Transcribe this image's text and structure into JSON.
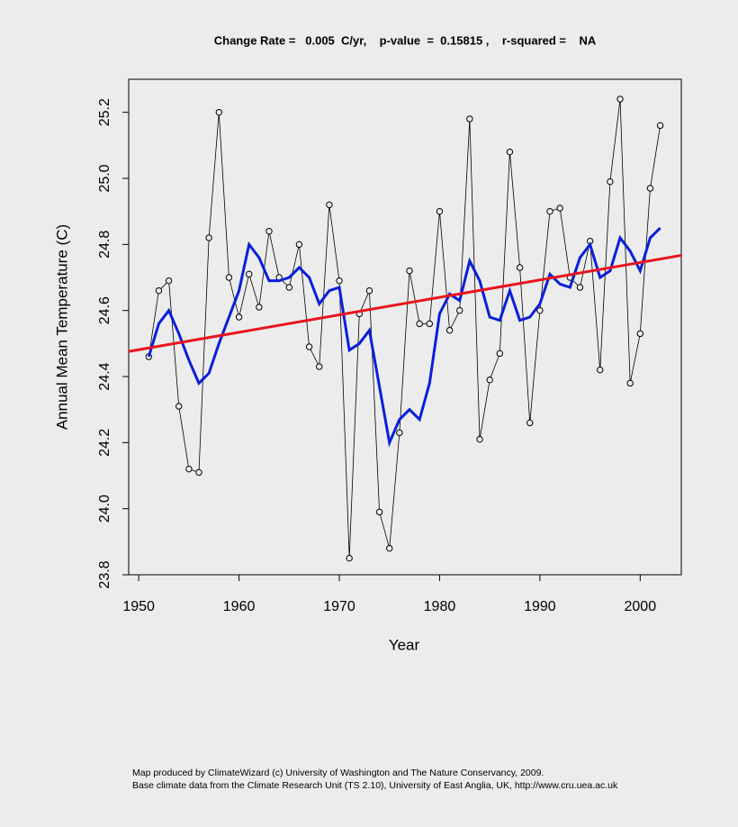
{
  "chart_data": {
    "type": "line",
    "title": "Change Rate =   0.005  C/yr,    p-value  =  0.15815 ,    r-squared =    NA",
    "x_label": "Year",
    "y_label": "Annual Mean Temperature (C)",
    "footnotes": [
      "Map produced by ClimateWizard (c) University of Washington and The Nature Conservancy, 2009.",
      "Base climate data from the Climate Research Unit (TS 2.10), University of East Anglia, UK, http://www.cru.uea.ac.uk"
    ],
    "x": [
      1951,
      1952,
      1953,
      1954,
      1955,
      1956,
      1957,
      1958,
      1959,
      1960,
      1961,
      1962,
      1963,
      1964,
      1965,
      1966,
      1967,
      1968,
      1969,
      1970,
      1971,
      1972,
      1973,
      1974,
      1975,
      1976,
      1977,
      1978,
      1979,
      1980,
      1981,
      1982,
      1983,
      1984,
      1985,
      1986,
      1987,
      1988,
      1989,
      1990,
      1991,
      1992,
      1993,
      1994,
      1995,
      1996,
      1997,
      1998,
      1999,
      2000,
      2001,
      2002
    ],
    "series": [
      {
        "color": "#000000",
        "markers": true,
        "line_width": 0.8,
        "values": [
          24.46,
          24.66,
          24.69,
          24.31,
          24.12,
          24.11,
          24.82,
          25.2,
          24.7,
          24.58,
          24.71,
          24.61,
          24.84,
          24.7,
          24.67,
          24.8,
          24.49,
          24.43,
          24.92,
          24.69,
          23.85,
          24.59,
          24.66,
          23.99,
          23.88,
          24.23,
          24.72,
          24.56,
          24.56,
          24.9,
          24.54,
          24.6,
          25.18,
          24.21,
          24.39,
          24.47,
          25.08,
          24.73,
          24.26,
          24.6,
          24.9,
          24.91,
          24.7,
          24.67,
          24.81,
          24.42,
          24.99,
          25.24,
          24.38,
          24.53,
          24.97,
          25.16
        ]
      },
      {
        "color": "#0a1fd8",
        "markers": false,
        "line_width": 3,
        "values": [
          24.46,
          24.56,
          24.6,
          24.53,
          24.45,
          24.38,
          24.41,
          24.5,
          24.58,
          24.66,
          24.8,
          24.76,
          24.69,
          24.69,
          24.7,
          24.73,
          24.7,
          24.62,
          24.66,
          24.67,
          24.48,
          24.5,
          24.54,
          24.37,
          24.2,
          24.27,
          24.3,
          24.27,
          24.38,
          24.59,
          24.65,
          24.63,
          24.75,
          24.69,
          24.58,
          24.57,
          24.66,
          24.57,
          24.58,
          24.62,
          24.71,
          24.68,
          24.67,
          24.76,
          24.8,
          24.7,
          24.72,
          24.82,
          24.78,
          24.72,
          24.82,
          24.85
        ]
      },
      {
        "color": "#e8141c",
        "markers": false,
        "line_width": 3,
        "x": [
          1949,
          2004.1
        ],
        "values": [
          24.476,
          24.767
        ]
      }
    ],
    "xlim": [
      1949,
      2004.1
    ],
    "ylim": [
      23.8,
      25.3
    ],
    "xticks": [
      1950,
      1960,
      1970,
      1980,
      1990,
      2000
    ],
    "yticks": [
      23.8,
      {
        "value": 24,
        "label": "24.0"
      },
      24.2,
      24.4,
      24.6,
      24.8,
      {
        "value": 25,
        "label": "25.0"
      },
      25.2
    ]
  }
}
